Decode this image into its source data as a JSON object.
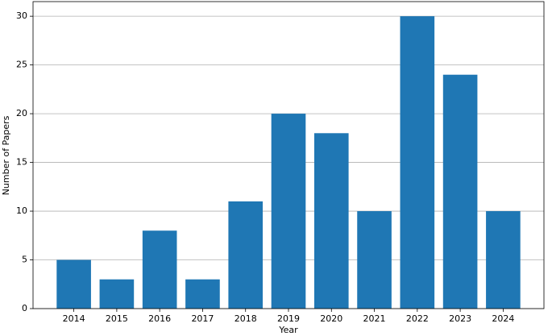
{
  "chart_data": {
    "type": "bar",
    "x_label": "Year",
    "y_label": "Number of Papers",
    "categories": [
      "2014",
      "2015",
      "2016",
      "2017",
      "2018",
      "2019",
      "2020",
      "2021",
      "2022",
      "2023",
      "2024"
    ],
    "values": [
      5,
      3,
      8,
      3,
      11,
      20,
      18,
      10,
      30,
      24,
      10
    ],
    "color": "#1f77b4",
    "ylim": [
      0,
      31.5
    ],
    "yticks": [
      0,
      5,
      10,
      15,
      20,
      25,
      30
    ],
    "grid": true
  }
}
